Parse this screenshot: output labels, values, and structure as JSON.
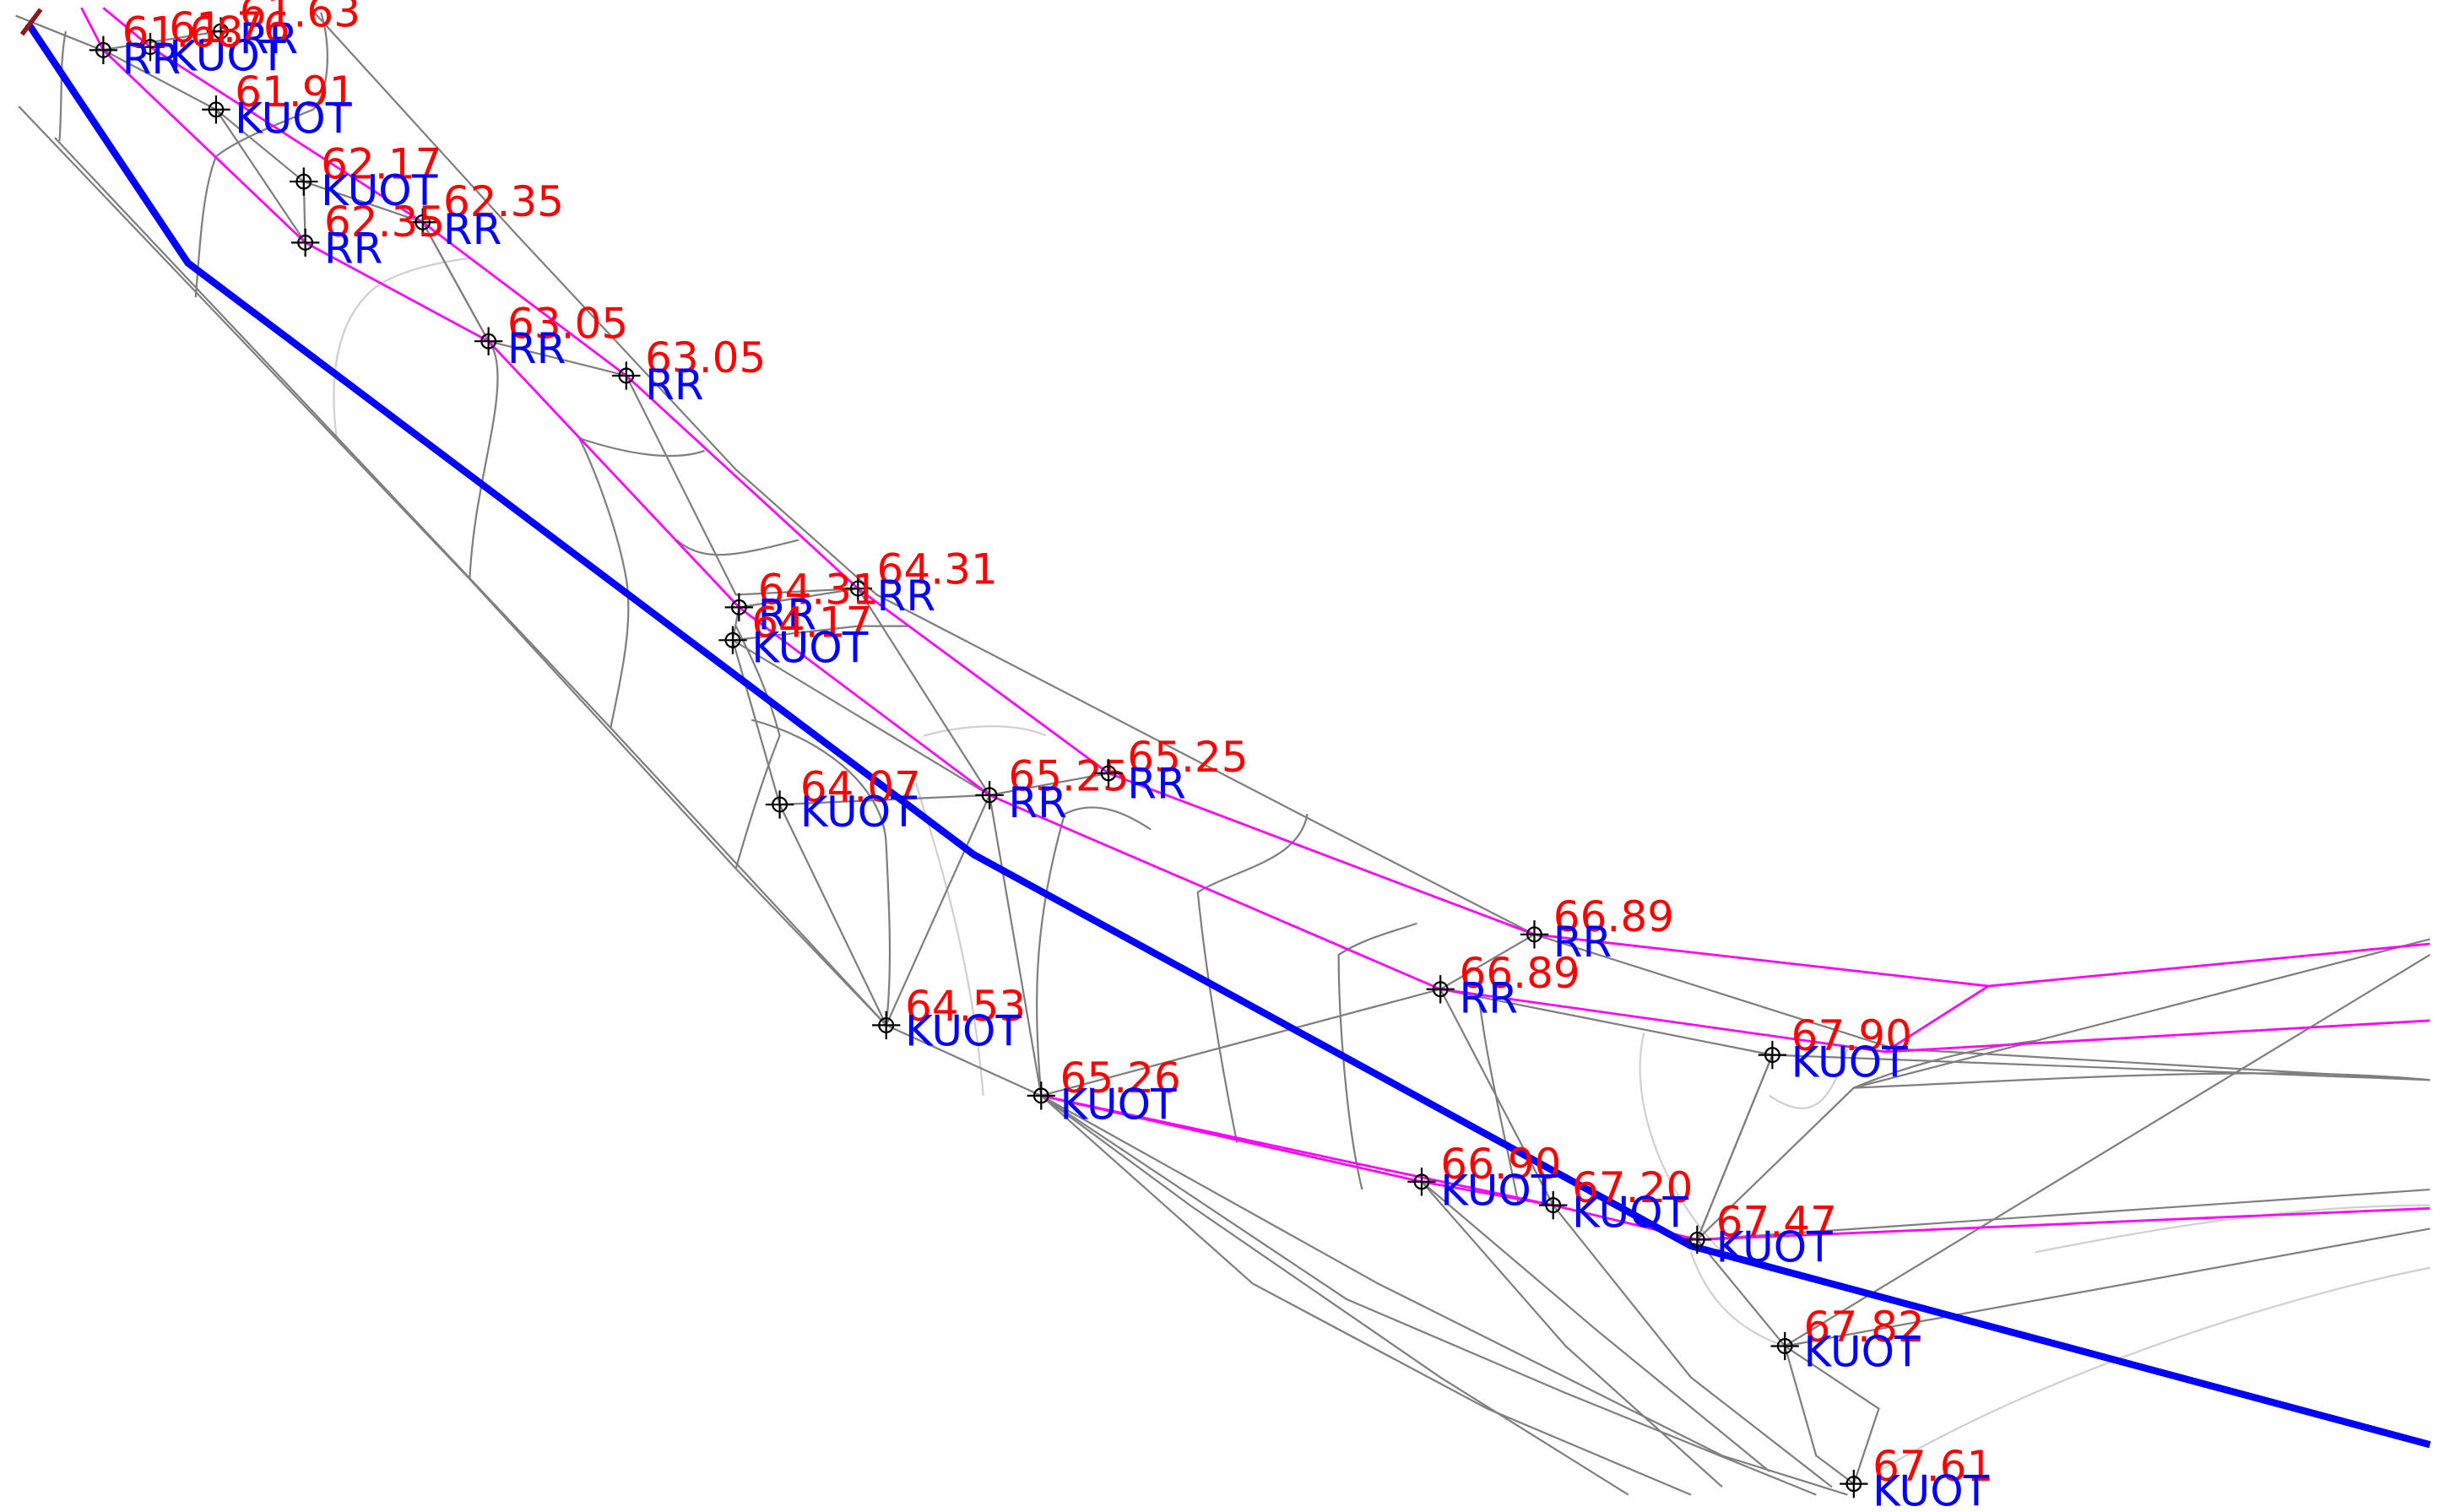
{
  "drawing": {
    "colors": {
      "background": "#ffffff",
      "tin": "#7f7f7f",
      "tin_light": "#d0d0d0",
      "breakline": "#ff00ff",
      "alignment": "#0000ff",
      "elevation_text": "#ff0000",
      "code_text": "#0000ff",
      "point_marker": "#000000",
      "edge_marker": "#8b1a1a"
    },
    "point_symbol": "crosshair-circle-icon",
    "points": [
      {
        "elevation": "61.63",
        "code": "RR"
      },
      {
        "elevation": "61.76",
        "code": "KUOT"
      },
      {
        "elevation": "61.68",
        "code": "RR"
      },
      {
        "elevation": "61.91",
        "code": "KUOT"
      },
      {
        "elevation": "62.17",
        "code": "KUOT"
      },
      {
        "elevation": "62.35",
        "code": "RR"
      },
      {
        "elevation": "62.35",
        "code": "RR"
      },
      {
        "elevation": "63.05",
        "code": "RR"
      },
      {
        "elevation": "63.05",
        "code": "RR"
      },
      {
        "elevation": "64.31",
        "code": "RR"
      },
      {
        "elevation": "64.31",
        "code": "RR"
      },
      {
        "elevation": "64.17",
        "code": "KUOT"
      },
      {
        "elevation": "64.07",
        "code": "KUOT"
      },
      {
        "elevation": "65.25",
        "code": "RR"
      },
      {
        "elevation": "65.25",
        "code": "RR"
      },
      {
        "elevation": "64.53",
        "code": "KUOT"
      },
      {
        "elevation": "65.26",
        "code": "KUOT"
      },
      {
        "elevation": "66.89",
        "code": "RR"
      },
      {
        "elevation": "66.89",
        "code": "RR"
      },
      {
        "elevation": "67.90",
        "code": "KUOT"
      },
      {
        "elevation": "66.90",
        "code": "KUOT"
      },
      {
        "elevation": "67.20",
        "code": "KUOT"
      },
      {
        "elevation": "67.47",
        "code": "KUOT"
      },
      {
        "elevation": "67.82",
        "code": "KUOT"
      },
      {
        "elevation": "67.61",
        "code": "KUOT"
      }
    ]
  }
}
